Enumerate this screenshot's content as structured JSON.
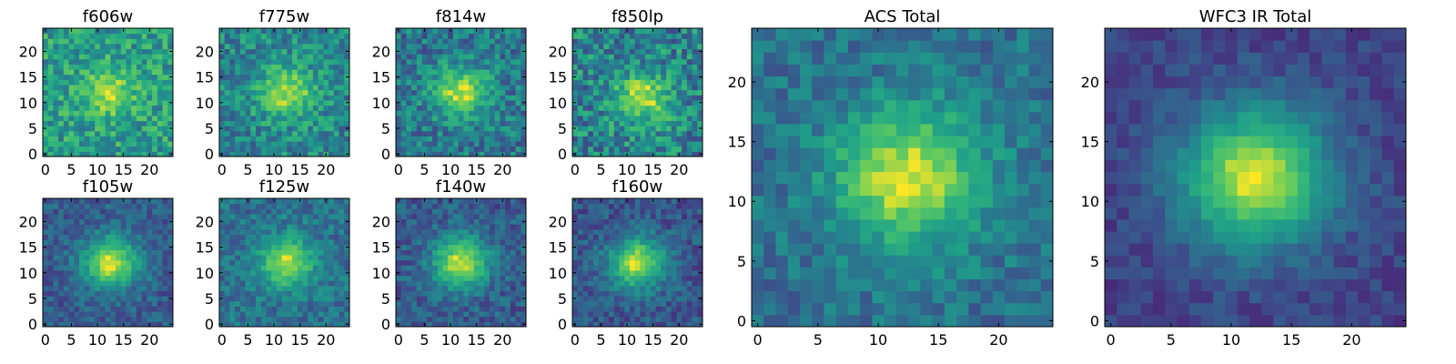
{
  "chart_data": [
    {
      "type": "heatmap",
      "title": "f606w",
      "xlim": [
        0,
        24
      ],
      "ylim": [
        0,
        24
      ],
      "xticks": [
        "0",
        "5",
        "10",
        "15",
        "20"
      ],
      "yticks": [
        "0",
        "5",
        "10",
        "15",
        "20"
      ],
      "colormap": "viridis",
      "grid": false,
      "peak": {
        "x": 12,
        "y": 12
      },
      "peak_level": 0.92,
      "background_level": 0.62,
      "noise": 0.22
    },
    {
      "type": "heatmap",
      "title": "f775w",
      "xlim": [
        0,
        24
      ],
      "ylim": [
        0,
        24
      ],
      "xticks": [
        "0",
        "5",
        "10",
        "15",
        "20"
      ],
      "yticks": [
        "0",
        "5",
        "10",
        "15",
        "20"
      ],
      "colormap": "viridis",
      "grid": false,
      "peak": {
        "x": 12.5,
        "y": 12
      },
      "peak_level": 0.94,
      "background_level": 0.52,
      "noise": 0.22
    },
    {
      "type": "heatmap",
      "title": "f814w",
      "xlim": [
        0,
        24
      ],
      "ylim": [
        0,
        24
      ],
      "xticks": [
        "0",
        "5",
        "10",
        "15",
        "20"
      ],
      "yticks": [
        "0",
        "5",
        "10",
        "15",
        "20"
      ],
      "colormap": "viridis",
      "grid": false,
      "peak": {
        "x": 12,
        "y": 12
      },
      "peak_level": 0.95,
      "background_level": 0.45,
      "noise": 0.22
    },
    {
      "type": "heatmap",
      "title": "f850lp",
      "xlim": [
        0,
        24
      ],
      "ylim": [
        0,
        24
      ],
      "xticks": [
        "0",
        "5",
        "10",
        "15",
        "20"
      ],
      "yticks": [
        "0",
        "5",
        "10",
        "15",
        "20"
      ],
      "colormap": "viridis",
      "grid": false,
      "peak": {
        "x": 13,
        "y": 11
      },
      "peak_level": 0.95,
      "background_level": 0.5,
      "noise": 0.26
    },
    {
      "type": "heatmap",
      "title": "f105w",
      "xlim": [
        0,
        24
      ],
      "ylim": [
        0,
        24
      ],
      "xticks": [
        "0",
        "5",
        "10",
        "15",
        "20"
      ],
      "yticks": [
        "0",
        "5",
        "10",
        "15",
        "20"
      ],
      "colormap": "viridis",
      "grid": false,
      "peak": {
        "x": 12.5,
        "y": 12
      },
      "peak_level": 0.98,
      "background_level": 0.33,
      "noise": 0.14
    },
    {
      "type": "heatmap",
      "title": "f125w",
      "xlim": [
        0,
        24
      ],
      "ylim": [
        0,
        24
      ],
      "xticks": [
        "0",
        "5",
        "10",
        "15",
        "20"
      ],
      "yticks": [
        "0",
        "5",
        "10",
        "15",
        "20"
      ],
      "colormap": "viridis",
      "grid": false,
      "peak": {
        "x": 12.5,
        "y": 12
      },
      "peak_level": 0.95,
      "background_level": 0.42,
      "noise": 0.16
    },
    {
      "type": "heatmap",
      "title": "f140w",
      "xlim": [
        0,
        24
      ],
      "ylim": [
        0,
        24
      ],
      "xticks": [
        "0",
        "5",
        "10",
        "15",
        "20"
      ],
      "yticks": [
        "0",
        "5",
        "10",
        "15",
        "20"
      ],
      "colormap": "viridis",
      "grid": false,
      "peak": {
        "x": 12,
        "y": 12
      },
      "peak_level": 0.97,
      "background_level": 0.33,
      "noise": 0.15
    },
    {
      "type": "heatmap",
      "title": "f160w",
      "xlim": [
        0,
        24
      ],
      "ylim": [
        0,
        24
      ],
      "xticks": [
        "0",
        "5",
        "10",
        "15",
        "20"
      ],
      "yticks": [
        "0",
        "5",
        "10",
        "15",
        "20"
      ],
      "colormap": "viridis",
      "grid": false,
      "peak": {
        "x": 12,
        "y": 12
      },
      "peak_level": 0.97,
      "background_level": 0.3,
      "noise": 0.15
    },
    {
      "type": "heatmap",
      "title": "ACS Total",
      "xlim": [
        0,
        24
      ],
      "ylim": [
        0,
        24
      ],
      "xticks": [
        "0",
        "5",
        "10",
        "15",
        "20"
      ],
      "yticks": [
        "0",
        "5",
        "10",
        "15",
        "20"
      ],
      "colormap": "viridis",
      "grid": false,
      "peak": {
        "x": 12.5,
        "y": 12
      },
      "peak_level": 0.98,
      "background_level": 0.42,
      "noise": 0.15
    },
    {
      "type": "heatmap",
      "title": "WFC3 IR Total",
      "xlim": [
        0,
        24
      ],
      "ylim": [
        0,
        24
      ],
      "xticks": [
        "0",
        "5",
        "10",
        "15",
        "20"
      ],
      "yticks": [
        "0",
        "5",
        "10",
        "15",
        "20"
      ],
      "colormap": "viridis",
      "grid": false,
      "peak": {
        "x": 12,
        "y": 12
      },
      "peak_level": 1.0,
      "background_level": 0.22,
      "noise": 0.09
    }
  ]
}
